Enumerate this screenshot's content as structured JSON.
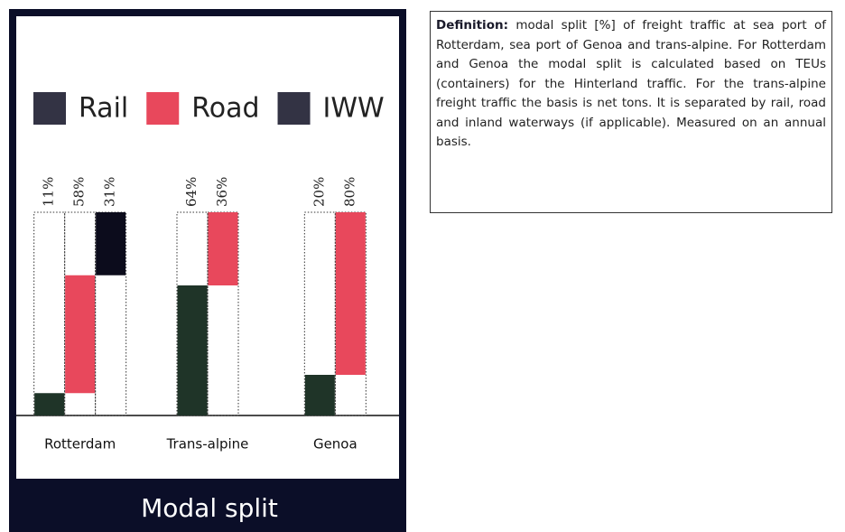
{
  "chart_data": {
    "type": "bar",
    "stacked": true,
    "title": "Modal split",
    "categories": [
      "Rotterdam",
      "Trans-alpine",
      "Genoa"
    ],
    "series": [
      {
        "name": "Rail",
        "color": "#1f3428",
        "legend_color": "#333344",
        "values": [
          11,
          64,
          20
        ],
        "value_labels": [
          "11%",
          "64%",
          "20%"
        ]
      },
      {
        "name": "Road",
        "color": "#e8485c",
        "legend_color": "#e8485c",
        "values": [
          58,
          36,
          80
        ],
        "value_labels": [
          "58%",
          "36%",
          "80%"
        ]
      },
      {
        "name": "IWW",
        "color": "#0c0c1c",
        "legend_color": "#333344",
        "values": [
          31,
          null,
          null
        ],
        "value_labels": [
          "31%",
          null,
          null
        ]
      }
    ]
  },
  "definition": {
    "label": "Definition:",
    "text": "modal split [%] of freight traffic at sea port of Rotterdam, sea port of Genoa and trans-alpine. For Rotterdam and Genoa the modal split is calculated based on TEUs (containers) for the Hinterland traffic. For the trans-alpine freight traffic the basis is net tons. It is separated by rail, road and inland waterways (if applicable). Measured on an annual basis."
  }
}
